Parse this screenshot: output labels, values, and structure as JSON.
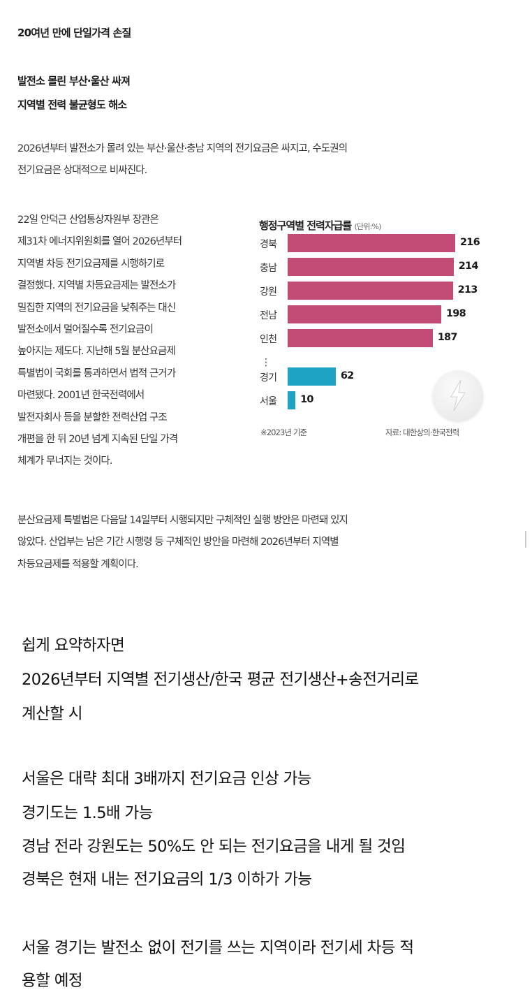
{
  "article": {
    "subhead1": "20여년 만에 단일가격 손질",
    "subhead2": [
      "발전소 몰린 부산·울산 싸져",
      "지역별 전력 불균형도 해소"
    ],
    "lead": [
      "2026년부터 발전소가 몰려 있는 부산·울산·충남 지역의 전기요금은 싸지고, 수도권의",
      "전기요금은 상대적으로 비싸진다."
    ],
    "para1": [
      "22일 안덕근 산업통상자원부 장관은",
      "제31차 에너지위원회를 열어 2026년부터",
      "지역별 차등 전기요금제를 시행하기로",
      "결정했다. 지역별 차등요금제는 발전소가",
      "밀집한 지역의 전기요금을 낮춰주는 대신",
      "발전소에서 멀어질수록 전기요금이",
      "높아지는 제도다. 지난해 5월 분산요금제",
      "특별법이 국회를 통과하면서 법적 근거가",
      "마련됐다. 2001년 한국전력에서",
      "발전자회사 등을 분할한 전력산업 구조",
      "개편을 한 뒤 20년 넘게 지속된 단일 가격",
      "체계가 무너지는 것이다."
    ],
    "para2": [
      "분산요금제 특별법은 다음달 14일부터 시행되지만 구체적인 실행 방안은 마련돼 있지",
      "않았다. 산업부는 남은 기간 시행령 등 구체적인 방안을 마련해 2026년부터 지역별",
      "차등요금제를 적용할 계획이다."
    ]
  },
  "chart_data": {
    "type": "bar",
    "orientation": "horizontal",
    "title": "행정구역별 전력자급률",
    "unit": "(단위:%)",
    "categories": [
      "경북",
      "충남",
      "강원",
      "전남",
      "인천",
      "경기",
      "서울"
    ],
    "values": [
      216,
      214,
      213,
      198,
      187,
      62,
      10
    ],
    "colors": [
      "#c24b75",
      "#c24b75",
      "#c24b75",
      "#c24b75",
      "#c24b75",
      "#1fa3c4",
      "#1fa3c4"
    ],
    "ellipsis": "⋮",
    "footnote": "※2023년 기준",
    "source": "자료: 대한상의·한국전력",
    "icon": "lightning-bolt-icon",
    "grid": false
  },
  "summary": {
    "lines": [
      "쉽게 요약하자면",
      "2026년부터 지역별 전기생산/한국 평균 전기생산+송전거리로",
      "계산할 시",
      "서울은 대략 최대 3배까지 전기요금 인상 가능",
      "경기도는 1.5배 가능",
      "경남 전라 강원도는 50%도 안 되는 전기요금을 내게 될 것임",
      "경북은 현재 내는 전기요금의 1/3 이하가 가능",
      "서울 경기는 발전소 없이 전기를 쓰는 지역이라 전기세 차등 적",
      "용할 예정"
    ]
  }
}
